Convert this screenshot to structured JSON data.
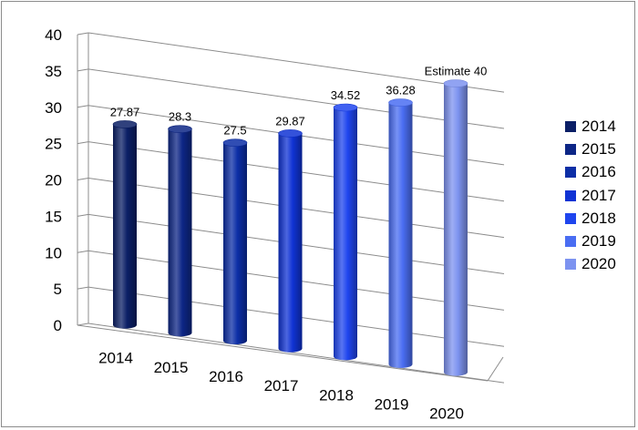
{
  "chart_data": {
    "type": "bar",
    "categories": [
      "2014",
      "2015",
      "2016",
      "2017",
      "2018",
      "2019",
      "2020"
    ],
    "values": [
      27.87,
      28.3,
      27.5,
      29.87,
      34.52,
      36.28,
      40
    ],
    "data_labels": [
      "27.87",
      "28.3",
      "27.5",
      "29.87",
      "34.52",
      "36.28",
      "Estimate 40"
    ],
    "colors": [
      "#0b1f66",
      "#0d2686",
      "#0c2ea6",
      "#1033d4",
      "#1f45ee",
      "#4a6df2",
      "#7d93f0"
    ],
    "ylim": [
      0,
      40
    ],
    "y_ticks": [
      0,
      5,
      10,
      15,
      20,
      25,
      30,
      35,
      40
    ],
    "legend": [
      "2014",
      "2015",
      "2016",
      "2017",
      "2018",
      "2019",
      "2020"
    ],
    "legend_placement": "right",
    "grid": true,
    "style": "3d-cylinder"
  }
}
